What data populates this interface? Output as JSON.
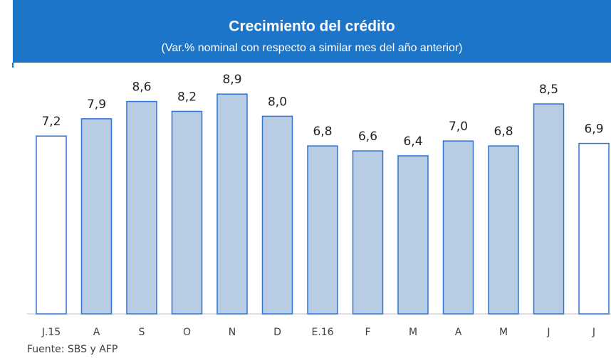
{
  "chart_data": {
    "type": "bar",
    "title": "Crecimiento del crédito",
    "subtitle": "(Var.%  nominal con respecto a similar mes del año anterior)",
    "categories": [
      "J.15",
      "A",
      "S",
      "O",
      "N",
      "D",
      "E.16",
      "F",
      "M",
      "A",
      "M",
      "J",
      "J"
    ],
    "values": [
      7.2,
      7.9,
      8.6,
      8.2,
      8.9,
      8.0,
      6.8,
      6.6,
      6.4,
      7.0,
      6.8,
      8.5,
      6.9
    ],
    "value_labels": [
      "7,2",
      "7,9",
      "8,6",
      "8,2",
      "8,9",
      "8,0",
      "6,8",
      "6,6",
      "6,4",
      "7,0",
      "6,8",
      "8,5",
      "6,9"
    ],
    "colors": [
      "#ffffff",
      "#b8cce4",
      "#b8cce4",
      "#b8cce4",
      "#b8cce4",
      "#b8cce4",
      "#b8cce4",
      "#b8cce4",
      "#b8cce4",
      "#b8cce4",
      "#b8cce4",
      "#b8cce4",
      "#ffffff"
    ],
    "edge_color": "#2e75d6",
    "source": "Fuente: SBS y AFP"
  }
}
